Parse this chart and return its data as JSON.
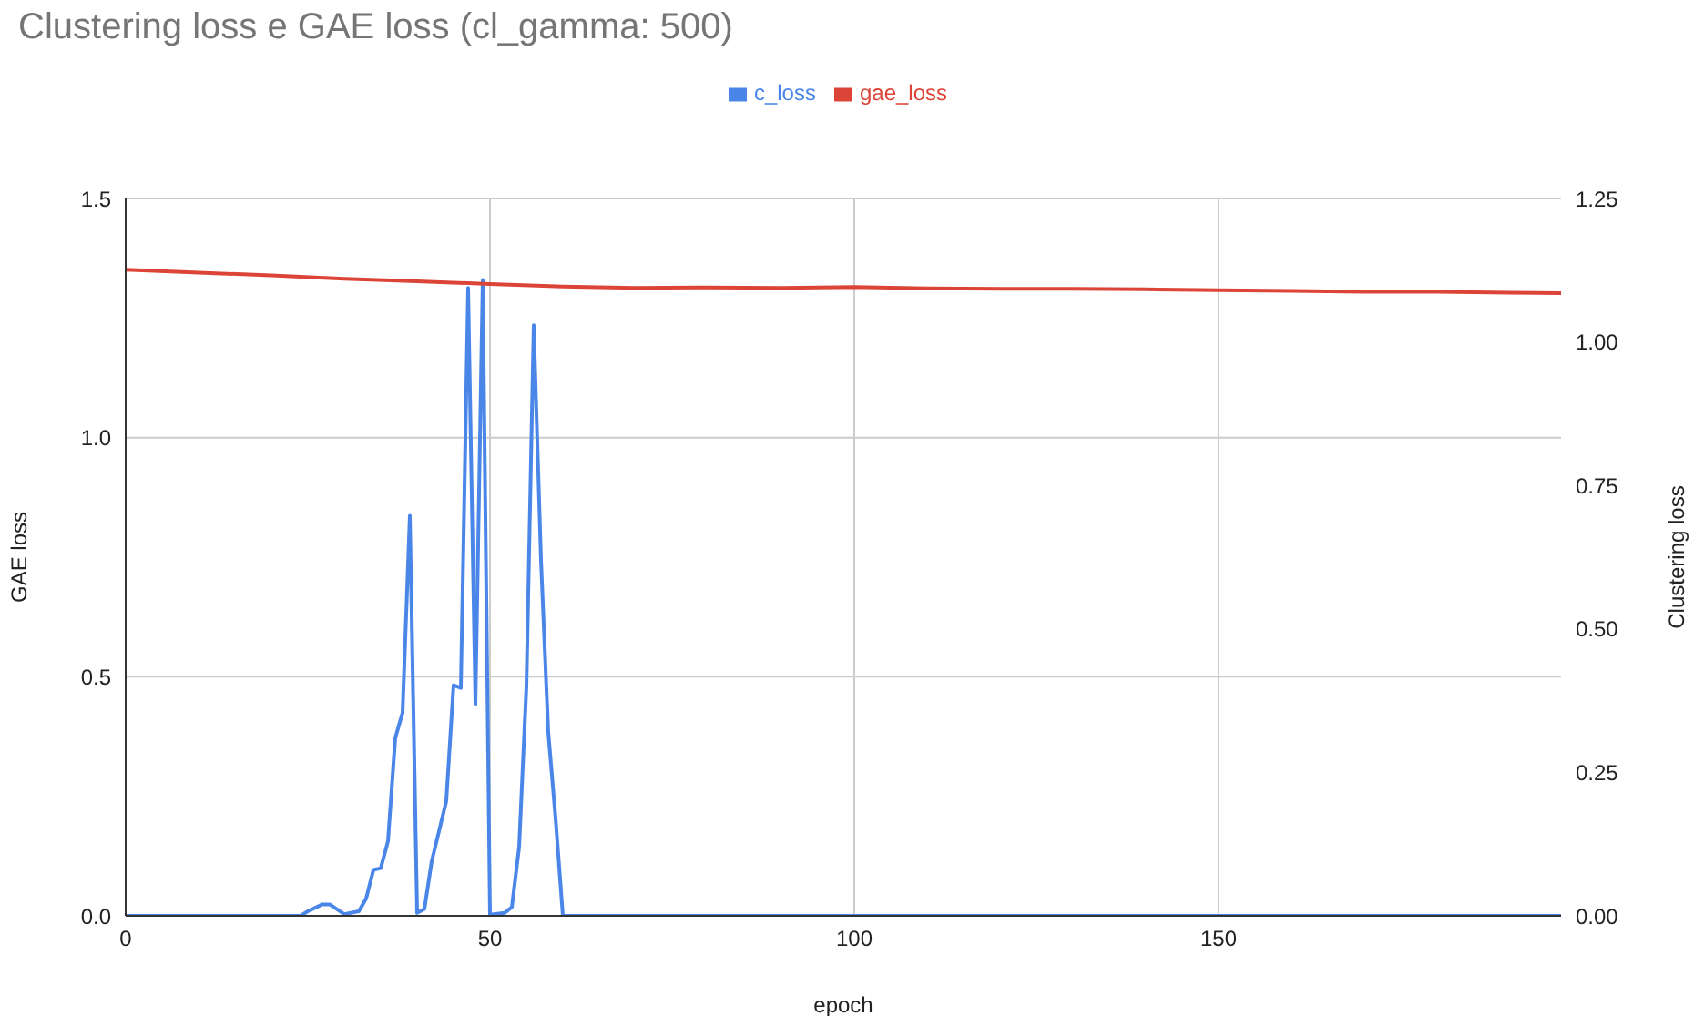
{
  "chart_data": {
    "type": "line",
    "title": "Clustering loss e GAE loss (cl_gamma: 500)",
    "xlabel": "epoch",
    "ylabel": "GAE loss",
    "y2label": "Clustering loss",
    "xlim": [
      0,
      197
    ],
    "xticks": [
      0,
      50,
      100,
      150
    ],
    "ylim": [
      0,
      1.5
    ],
    "yticks": [
      {
        "value": 0,
        "label": "0.0"
      },
      {
        "value": 0.5,
        "label": "0.5"
      },
      {
        "value": 1,
        "label": "1.0"
      },
      {
        "value": 1.5,
        "label": "1.5"
      }
    ],
    "y2lim": [
      0,
      1.25
    ],
    "y2ticks": [
      {
        "value": 0,
        "label": "0.00"
      },
      {
        "value": 0.25,
        "label": "0.25"
      },
      {
        "value": 0.5,
        "label": "0.50"
      },
      {
        "value": 0.75,
        "label": "0.75"
      },
      {
        "value": 1,
        "label": "1.00"
      },
      {
        "value": 1.25,
        "label": "1.25"
      }
    ],
    "grid": true,
    "legend": "top",
    "marker": "none",
    "line_style": "solid",
    "series": [
      {
        "name": "c_loss",
        "color": "#4a86e8",
        "axis": "y2",
        "x": [
          0,
          24,
          25,
          27,
          28,
          30,
          32,
          33,
          34,
          35,
          36,
          37,
          38,
          39,
          40,
          41,
          42,
          44,
          45,
          46,
          47,
          48,
          49,
          50,
          52,
          53,
          54,
          55,
          56,
          57,
          58,
          59,
          60,
          197
        ],
        "values": [
          0,
          0,
          0.008,
          0.02,
          0.02,
          0.003,
          0.008,
          0.03,
          0.08,
          0.083,
          0.13,
          0.31,
          0.354,
          0.697,
          0.005,
          0.012,
          0.095,
          0.2,
          0.402,
          0.397,
          1.094,
          0.369,
          1.108,
          0.002,
          0.005,
          0.015,
          0.12,
          0.4,
          1.029,
          0.62,
          0.32,
          0.17,
          0,
          0
        ]
      },
      {
        "name": "gae_loss",
        "color": "#db4437",
        "x": [
          0,
          10,
          20,
          30,
          40,
          50,
          60,
          70,
          80,
          90,
          100,
          110,
          120,
          130,
          140,
          150,
          160,
          170,
          180,
          190,
          197
        ],
        "values": [
          1.351,
          1.345,
          1.339,
          1.332,
          1.327,
          1.321,
          1.316,
          1.313,
          1.314,
          1.313,
          1.315,
          1.312,
          1.311,
          1.311,
          1.31,
          1.308,
          1.307,
          1.305,
          1.305,
          1.303,
          1.302
        ]
      }
    ]
  }
}
